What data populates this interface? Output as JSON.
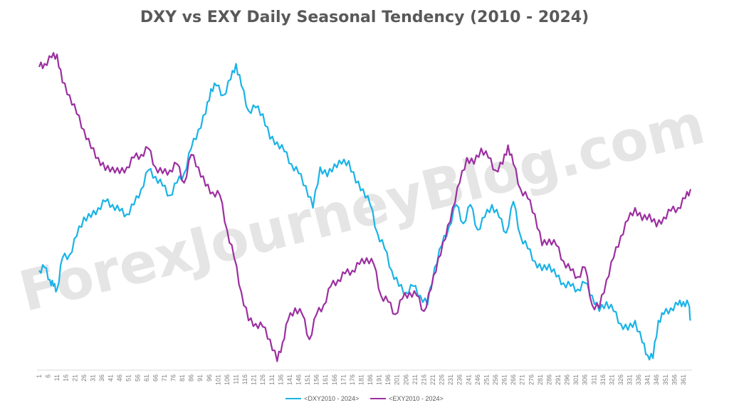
{
  "title": "DXY vs EXY Daily Seasonal Tendency (2010 - 2024)",
  "watermark": "ForexJourneyBlog.com",
  "chart_data": {
    "type": "line",
    "title": "DXY vs EXY Daily Seasonal Tendency (2010 - 2024)",
    "xlabel": "",
    "ylabel": "",
    "xlim": [
      1,
      365
    ],
    "ylim": [
      0,
      100
    ],
    "grid": false,
    "legend_position": "bottom",
    "x_tick_labels": [
      "1",
      "6",
      "11",
      "16",
      "21",
      "26",
      "31",
      "36",
      "41",
      "46",
      "51",
      "56",
      "61",
      "66",
      "71",
      "76",
      "81",
      "86",
      "91",
      "96",
      "101",
      "106",
      "111",
      "116",
      "121",
      "126",
      "131",
      "136",
      "141",
      "146",
      "151",
      "156",
      "161",
      "166",
      "171",
      "176",
      "181",
      "186",
      "191",
      "196",
      "201",
      "206",
      "211",
      "216",
      "221",
      "226",
      "231",
      "236",
      "241",
      "246",
      "251",
      "256",
      "261",
      "266",
      "271",
      "276",
      "281",
      "286",
      "291",
      "296",
      "301",
      "306",
      "311",
      "316",
      "321",
      "326",
      "331",
      "336",
      "341",
      "346",
      "351",
      "356",
      "361"
    ],
    "series": [
      {
        "name": "<DXY2010 - 2024>",
        "color": "#1ab3e6",
        "points": [
          [
            1,
            30
          ],
          [
            4,
            31
          ],
          [
            7,
            27
          ],
          [
            9,
            25
          ],
          [
            11,
            24
          ],
          [
            14,
            34
          ],
          [
            18,
            35
          ],
          [
            22,
            41
          ],
          [
            26,
            47
          ],
          [
            30,
            47
          ],
          [
            34,
            50
          ],
          [
            38,
            52
          ],
          [
            42,
            51
          ],
          [
            46,
            49
          ],
          [
            50,
            48
          ],
          [
            54,
            51
          ],
          [
            58,
            56
          ],
          [
            62,
            62
          ],
          [
            66,
            60
          ],
          [
            70,
            57
          ],
          [
            74,
            54
          ],
          [
            78,
            58
          ],
          [
            82,
            61
          ],
          [
            86,
            69
          ],
          [
            90,
            75
          ],
          [
            94,
            80
          ],
          [
            97,
            88
          ],
          [
            100,
            89
          ],
          [
            104,
            86
          ],
          [
            108,
            91
          ],
          [
            111,
            96
          ],
          [
            114,
            89
          ],
          [
            118,
            81
          ],
          [
            122,
            82
          ],
          [
            126,
            80
          ],
          [
            130,
            72
          ],
          [
            134,
            71
          ],
          [
            138,
            68
          ],
          [
            142,
            64
          ],
          [
            146,
            61
          ],
          [
            150,
            57
          ],
          [
            154,
            50
          ],
          [
            158,
            63
          ],
          [
            162,
            60
          ],
          [
            166,
            64
          ],
          [
            170,
            64
          ],
          [
            174,
            65
          ],
          [
            178,
            58
          ],
          [
            182,
            56
          ],
          [
            186,
            51
          ],
          [
            190,
            42
          ],
          [
            194,
            37
          ],
          [
            198,
            30
          ],
          [
            202,
            25
          ],
          [
            206,
            23
          ],
          [
            210,
            25
          ],
          [
            214,
            22
          ],
          [
            218,
            19
          ],
          [
            222,
            31
          ],
          [
            226,
            38
          ],
          [
            230,
            44
          ],
          [
            234,
            51
          ],
          [
            238,
            45
          ],
          [
            242,
            51
          ],
          [
            246,
            43
          ],
          [
            250,
            47
          ],
          [
            254,
            51
          ],
          [
            258,
            47
          ],
          [
            262,
            42
          ],
          [
            266,
            52
          ],
          [
            270,
            41
          ],
          [
            274,
            37
          ],
          [
            278,
            33
          ],
          [
            282,
            30
          ],
          [
            286,
            32
          ],
          [
            290,
            28
          ],
          [
            294,
            26
          ],
          [
            298,
            25
          ],
          [
            302,
            24
          ],
          [
            306,
            26
          ],
          [
            310,
            22
          ],
          [
            314,
            17
          ],
          [
            318,
            20
          ],
          [
            322,
            17
          ],
          [
            326,
            13
          ],
          [
            330,
            11
          ],
          [
            334,
            14
          ],
          [
            338,
            7
          ],
          [
            341,
            3
          ],
          [
            344,
            2
          ],
          [
            347,
            14
          ],
          [
            350,
            16
          ],
          [
            354,
            18
          ],
          [
            358,
            19
          ],
          [
            361,
            20
          ],
          [
            364,
            19
          ],
          [
            365,
            14
          ]
        ]
      },
      {
        "name": "<EXY2010 - 2024>",
        "color": "#9c2fa0",
        "points": [
          [
            1,
            95
          ],
          [
            4,
            96
          ],
          [
            8,
            98
          ],
          [
            11,
            99
          ],
          [
            14,
            90
          ],
          [
            18,
            86
          ],
          [
            22,
            80
          ],
          [
            26,
            75
          ],
          [
            30,
            69
          ],
          [
            34,
            66
          ],
          [
            38,
            62
          ],
          [
            42,
            63
          ],
          [
            46,
            61
          ],
          [
            50,
            63
          ],
          [
            54,
            66
          ],
          [
            58,
            67
          ],
          [
            62,
            69
          ],
          [
            66,
            63
          ],
          [
            70,
            61
          ],
          [
            74,
            62
          ],
          [
            78,
            64
          ],
          [
            82,
            58
          ],
          [
            86,
            67
          ],
          [
            90,
            63
          ],
          [
            94,
            57
          ],
          [
            98,
            55
          ],
          [
            102,
            54
          ],
          [
            106,
            43
          ],
          [
            110,
            34
          ],
          [
            114,
            23
          ],
          [
            118,
            14
          ],
          [
            122,
            13
          ],
          [
            126,
            12
          ],
          [
            130,
            8
          ],
          [
            134,
            1
          ],
          [
            137,
            7
          ],
          [
            140,
            14
          ],
          [
            144,
            18
          ],
          [
            148,
            16
          ],
          [
            152,
            8
          ],
          [
            156,
            16
          ],
          [
            160,
            19
          ],
          [
            164,
            25
          ],
          [
            168,
            27
          ],
          [
            172,
            29
          ],
          [
            176,
            30
          ],
          [
            180,
            32
          ],
          [
            184,
            34
          ],
          [
            188,
            32
          ],
          [
            192,
            22
          ],
          [
            196,
            20
          ],
          [
            200,
            16
          ],
          [
            204,
            21
          ],
          [
            208,
            23
          ],
          [
            212,
            22
          ],
          [
            216,
            17
          ],
          [
            220,
            24
          ],
          [
            224,
            34
          ],
          [
            228,
            40
          ],
          [
            232,
            50
          ],
          [
            236,
            58
          ],
          [
            240,
            66
          ],
          [
            244,
            64
          ],
          [
            248,
            69
          ],
          [
            252,
            66
          ],
          [
            256,
            62
          ],
          [
            260,
            64
          ],
          [
            263,
            70
          ],
          [
            266,
            64
          ],
          [
            270,
            56
          ],
          [
            274,
            53
          ],
          [
            278,
            48
          ],
          [
            282,
            38
          ],
          [
            286,
            40
          ],
          [
            290,
            38
          ],
          [
            294,
            33
          ],
          [
            298,
            30
          ],
          [
            302,
            28
          ],
          [
            306,
            31
          ],
          [
            310,
            19
          ],
          [
            314,
            18
          ],
          [
            318,
            27
          ],
          [
            322,
            34
          ],
          [
            326,
            41
          ],
          [
            330,
            46
          ],
          [
            334,
            50
          ],
          [
            338,
            46
          ],
          [
            342,
            48
          ],
          [
            346,
            44
          ],
          [
            350,
            47
          ],
          [
            354,
            49
          ],
          [
            358,
            50
          ],
          [
            362,
            53
          ],
          [
            365,
            56
          ]
        ]
      }
    ]
  }
}
